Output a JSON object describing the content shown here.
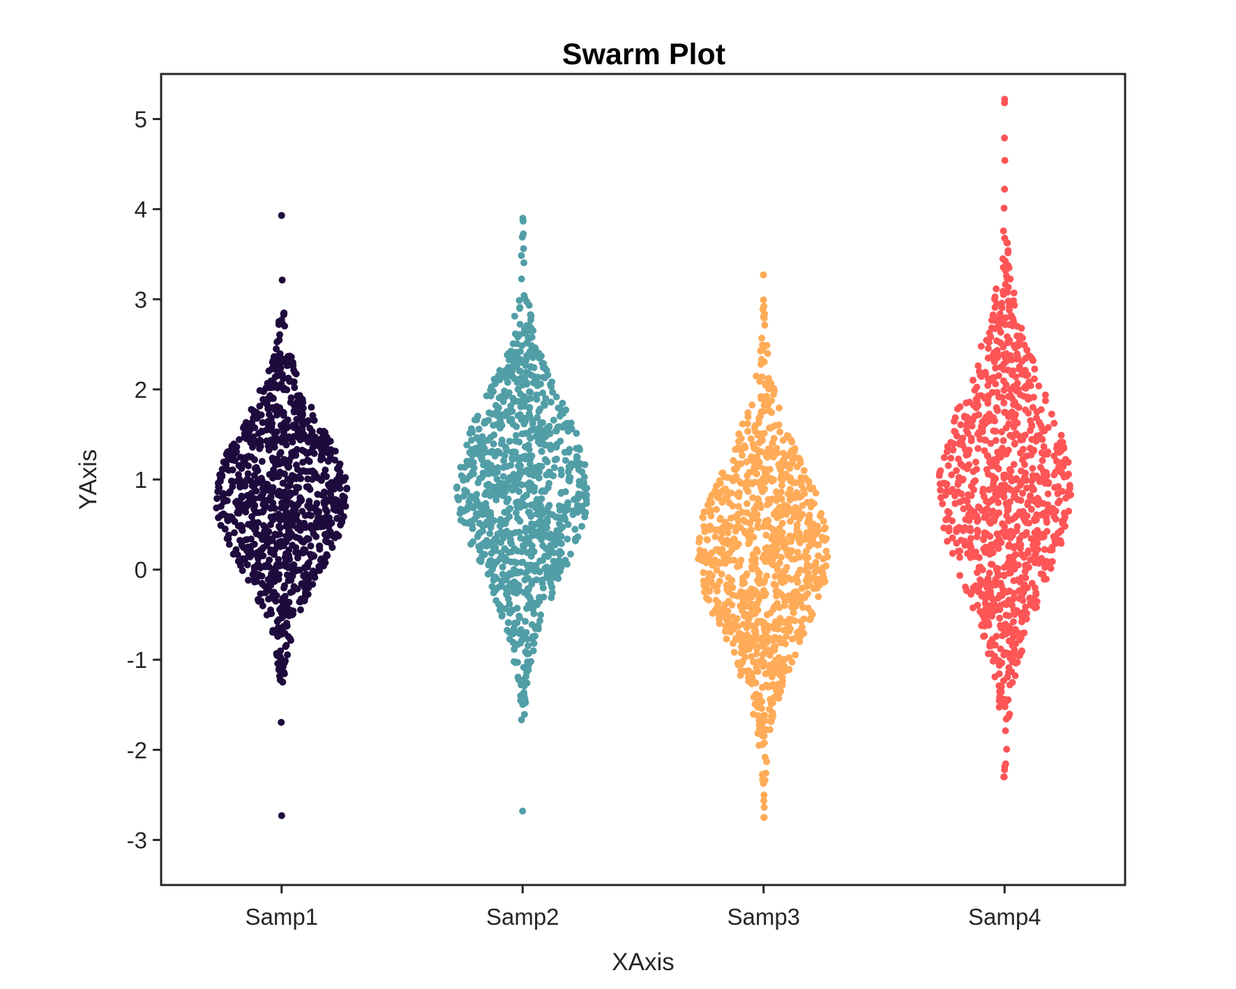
{
  "chart_data": {
    "type": "scatter",
    "subtype": "swarm",
    "title": "Swarm Plot",
    "xlabel": "XAxis",
    "ylabel": "YAxis",
    "ylim": [
      -3.5,
      5.5
    ],
    "yticks": [
      -3,
      -2,
      -1,
      0,
      1,
      2,
      3,
      4,
      5
    ],
    "ytick_labels": [
      "-3",
      "-2",
      "-1",
      "0",
      "1",
      "2",
      "3",
      "4",
      "5"
    ],
    "grid": false,
    "legend": "none",
    "categories": [
      "Samp1",
      "Samp2",
      "Samp3",
      "Samp4"
    ],
    "series": [
      {
        "category": "Samp1",
        "color": "#1f0a3d",
        "count": 1000,
        "mean": 0.8,
        "std": 0.8,
        "min": -2.73,
        "max": 3.93
      },
      {
        "category": "Samp2",
        "color": "#519ea7",
        "count": 1000,
        "mean": 0.9,
        "std": 0.95,
        "min": -2.68,
        "max": 3.9
      },
      {
        "category": "Samp3",
        "color": "#ffab58",
        "count": 1000,
        "mean": 0.2,
        "std": 0.95,
        "min": -2.75,
        "max": 3.27
      },
      {
        "category": "Samp4",
        "color": "#fe5556",
        "count": 1000,
        "mean": 0.9,
        "std": 1.1,
        "min": -2.3,
        "max": 5.22
      }
    ]
  }
}
